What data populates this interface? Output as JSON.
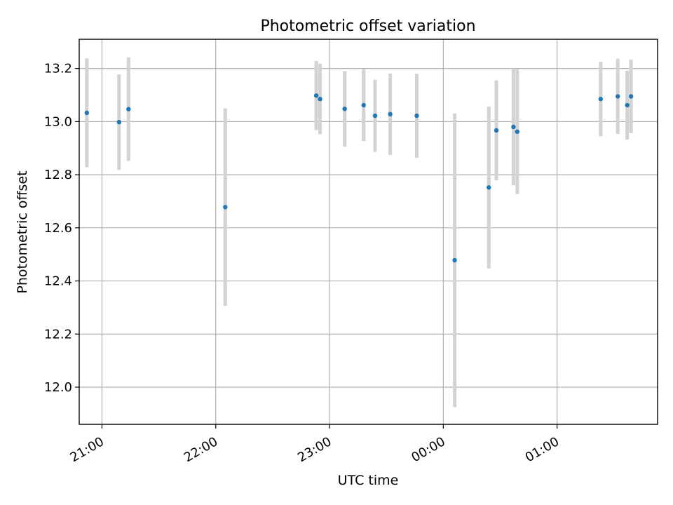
{
  "chart_data": {
    "type": "scatter",
    "title": "Photometric offset variation",
    "xlabel": "UTC time",
    "ylabel": "Photometric offset",
    "x_range": [
      "20:48",
      "01:53"
    ],
    "ylim": [
      11.86,
      13.31
    ],
    "x_ticks": [
      "21:00",
      "22:00",
      "23:00",
      "00:00",
      "01:00"
    ],
    "y_ticks": [
      "12.0",
      "12.2",
      "12.4",
      "12.6",
      "12.8",
      "13.0",
      "13.2"
    ],
    "grid": true,
    "colors": {
      "point": "#1f77b4",
      "errorbar": "#d3d3d3"
    },
    "points": [
      {
        "x": "20:52",
        "y": 13.033,
        "yerr": 0.205
      },
      {
        "x": "21:09",
        "y": 12.998,
        "yerr": 0.18
      },
      {
        "x": "21:14",
        "y": 13.047,
        "yerr": 0.195
      },
      {
        "x": "22:05",
        "y": 12.678,
        "yerr": 0.372
      },
      {
        "x": "22:53",
        "y": 13.098,
        "yerr": 0.13
      },
      {
        "x": "22:55",
        "y": 13.085,
        "yerr": 0.133
      },
      {
        "x": "23:08",
        "y": 13.048,
        "yerr": 0.142
      },
      {
        "x": "23:18",
        "y": 13.062,
        "yerr": 0.135
      },
      {
        "x": "23:24",
        "y": 13.022,
        "yerr": 0.136
      },
      {
        "x": "23:32",
        "y": 13.028,
        "yerr": 0.153
      },
      {
        "x": "23:46",
        "y": 13.022,
        "yerr": 0.158
      },
      {
        "x": "00:06",
        "y": 12.478,
        "yerr": 0.553
      },
      {
        "x": "00:24",
        "y": 12.752,
        "yerr": 0.305
      },
      {
        "x": "00:28",
        "y": 12.967,
        "yerr": 0.188
      },
      {
        "x": "00:37",
        "y": 12.98,
        "yerr": 0.22
      },
      {
        "x": "00:39",
        "y": 12.962,
        "yerr": 0.235
      },
      {
        "x": "01:23",
        "y": 13.085,
        "yerr": 0.14
      },
      {
        "x": "01:32",
        "y": 13.095,
        "yerr": 0.142
      },
      {
        "x": "01:37",
        "y": 13.062,
        "yerr": 0.13
      },
      {
        "x": "01:39",
        "y": 13.095,
        "yerr": 0.138
      }
    ]
  }
}
